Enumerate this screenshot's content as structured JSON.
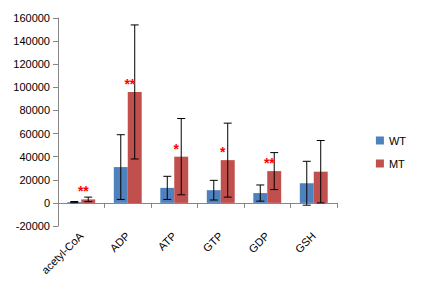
{
  "chart_data": {
    "type": "bar",
    "categories": [
      "acetyl-CoA",
      "ADP",
      "ATP",
      "GTP",
      "GDP",
      "GSH"
    ],
    "series": [
      {
        "name": "WT",
        "color": "#4F81BD",
        "values": [
          700,
          31000,
          13000,
          11000,
          8500,
          17000
        ],
        "errors": [
          500,
          28000,
          10000,
          8500,
          7000,
          19000
        ]
      },
      {
        "name": "MT",
        "color": "#C0504D",
        "values": [
          3000,
          96000,
          40000,
          37000,
          27500,
          27000
        ],
        "errors": [
          2000,
          58000,
          33000,
          32000,
          16000,
          27000
        ],
        "annotations": [
          "**",
          "**",
          "*",
          "*",
          "**",
          null
        ]
      }
    ],
    "ylim": [
      -20000,
      160000
    ],
    "yticks": [
      -20000,
      0,
      20000,
      40000,
      60000,
      80000,
      100000,
      120000,
      140000,
      160000
    ],
    "grid": false,
    "legend": "right"
  }
}
